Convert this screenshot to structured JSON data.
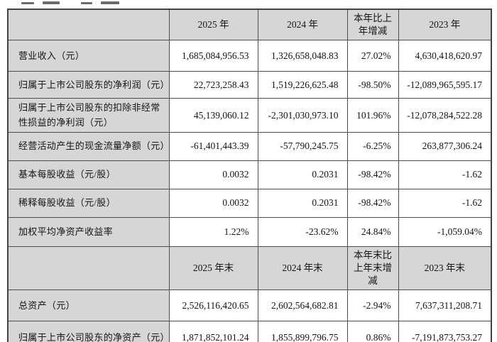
{
  "colors": {
    "header_bg": "#d6d6d6",
    "cell_bg": "#ffffff",
    "border": "#4d4d4d",
    "text": "#151515"
  },
  "financial_table": {
    "period_header": {
      "col_2025": "2025 年",
      "col_2024": "2024 年",
      "col_change": "本年比上年增减",
      "col_2023": "2023 年"
    },
    "period_rows": [
      {
        "label": "营业收入（元）",
        "v2025": "1,685,084,956.53",
        "v2024": "1,326,658,048.83",
        "change": "27.02%",
        "v2023": "4,630,418,620.97"
      },
      {
        "label": "归属于上市公司股东的净利润（元）",
        "v2025": "22,723,258.43",
        "v2024": "1,519,226,625.48",
        "change": "-98.50%",
        "v2023": "-12,089,965,595.17"
      },
      {
        "label": "归属于上市公司股东的扣除非经常性损益的净利润（元）",
        "v2025": "45,139,060.12",
        "v2024": "-2,301,030,973.10",
        "change": "101.96%",
        "v2023": "-12,078,284,522.28"
      },
      {
        "label": "经营活动产生的现金流量净额（元）",
        "v2025": "-61,401,443.39",
        "v2024": "-57,790,245.75",
        "change": "-6.25%",
        "v2023": "263,877,306.24"
      },
      {
        "label": "基本每股收益（元/股）",
        "v2025": "0.0032",
        "v2024": "0.2031",
        "change": "-98.42%",
        "v2023": "-1.62"
      },
      {
        "label": "稀释每股收益（元/股）",
        "v2025": "0.0032",
        "v2024": "0.2031",
        "change": "-98.42%",
        "v2023": "-1.62"
      },
      {
        "label": "加权平均净资产收益率",
        "v2025": "1.22%",
        "v2024": "-23.62%",
        "change": "24.84%",
        "v2023": "-1,059.04%"
      }
    ],
    "endpoint_header": {
      "col_2025": "2025 年末",
      "col_2024": "2024 年末",
      "col_change": "本年末比上年末增减",
      "col_2023": "2023 年末"
    },
    "endpoint_rows": [
      {
        "label": "总资产（元）",
        "v2025": "2,526,116,420.65",
        "v2024": "2,602,564,682.81",
        "change": "-2.94%",
        "v2023": "7,637,311,208.71"
      },
      {
        "label": "归属于上市公司股东的净资产（元）",
        "v2025": "1,871,852,101.24",
        "v2024": "1,855,899,796.75",
        "change": "0.86%",
        "v2023": "-7,191,873,753.27"
      }
    ]
  }
}
